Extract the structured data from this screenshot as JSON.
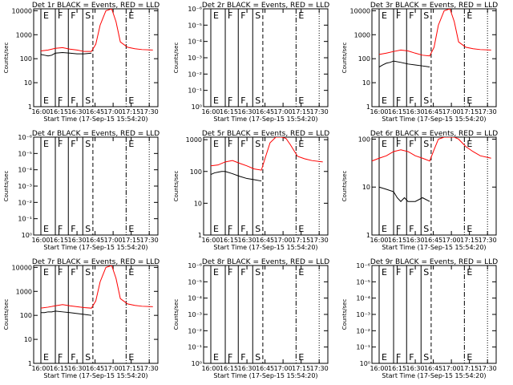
{
  "time_axis": {
    "tick_labels": [
      "16:00",
      "16:15",
      "16:30",
      "16:45",
      "17:00",
      "17:15",
      "17:30"
    ],
    "tick_hours": [
      16.0,
      16.25,
      16.5,
      16.75,
      17.0,
      17.25,
      17.5
    ],
    "xlim": [
      15.9,
      17.62
    ],
    "xlabel": "Start Time (17-Sep-15 15:54:20)"
  },
  "ylabel": "Counts/sec",
  "colors": {
    "events": "#000000",
    "lld": "#ff0000",
    "axes": "#000000"
  },
  "chart_data": [
    {
      "type": "line",
      "title": "Det 1r BLACK = Events, RED = LLD",
      "scale": "log",
      "ytick_labels": [
        "1",
        "10",
        "100",
        "1000",
        "10000"
      ],
      "ylim": [
        1,
        12000
      ],
      "markers": [
        {
          "label": "E",
          "t": 16.0,
          "style": "solid"
        },
        {
          "label": "F",
          "t": 16.2,
          "style": "solid"
        },
        {
          "label": "F",
          "t": 16.38,
          "style": "solid"
        },
        {
          "label": "S",
          "t": 16.58,
          "style": "solid"
        },
        {
          "label": "",
          "t": 16.72,
          "style": "dashed"
        },
        {
          "label": "E",
          "t": 17.18,
          "style": "dashdot"
        },
        {
          "label": "",
          "t": 17.5,
          "style": "dotted"
        }
      ],
      "series": [
        {
          "x": [
            16.0,
            16.1,
            16.2,
            16.3,
            16.4,
            16.5,
            16.6,
            16.7,
            16.76,
            16.82,
            16.9,
            16.98,
            17.04,
            17.1,
            17.2,
            17.3,
            17.4,
            17.55
          ],
          "y": [
            210,
            230,
            270,
            290,
            250,
            230,
            200,
            200,
            400,
            2500,
            10000,
            12000,
            3500,
            500,
            300,
            260,
            240,
            230
          ]
        },
        {
          "x": [
            16.0,
            16.05,
            16.1,
            16.15,
            16.2,
            16.3,
            16.4,
            16.5,
            16.6,
            16.7
          ],
          "y": [
            150,
            140,
            130,
            140,
            170,
            180,
            170,
            160,
            160,
            170
          ]
        }
      ]
    },
    {
      "type": "line",
      "title": "Det 2r BLACK = Events, RED = LLD",
      "scale": "log",
      "ytick_labels": [
        "10⁰",
        "10⁻¹",
        "10⁻²",
        "10⁻³",
        "10⁻⁴",
        "10⁻⁵",
        "10⁻⁶"
      ],
      "ylim": [
        0,
        6
      ],
      "markers": [
        {
          "label": "E",
          "t": 16.0,
          "style": "solid"
        },
        {
          "label": "F",
          "t": 16.2,
          "style": "solid"
        },
        {
          "label": "F",
          "t": 16.38,
          "style": "solid"
        },
        {
          "label": "S",
          "t": 16.58,
          "style": "solid"
        },
        {
          "label": "",
          "t": 16.72,
          "style": "dashed"
        },
        {
          "label": "E",
          "t": 17.18,
          "style": "dashdot"
        },
        {
          "label": "",
          "t": 17.5,
          "style": "dotted"
        }
      ],
      "series": []
    },
    {
      "type": "line",
      "title": "Det 3r BLACK = Events, RED = LLD",
      "scale": "log",
      "ytick_labels": [
        "1",
        "10",
        "100",
        "1000",
        "10000"
      ],
      "ylim": [
        1,
        12000
      ],
      "markers": [
        {
          "label": "E",
          "t": 16.0,
          "style": "solid"
        },
        {
          "label": "F",
          "t": 16.2,
          "style": "solid"
        },
        {
          "label": "F",
          "t": 16.38,
          "style": "solid"
        },
        {
          "label": "S",
          "t": 16.58,
          "style": "solid"
        },
        {
          "label": "",
          "t": 16.72,
          "style": "dashed"
        },
        {
          "label": "E",
          "t": 17.18,
          "style": "dashdot"
        },
        {
          "label": "",
          "t": 17.5,
          "style": "dotted"
        }
      ],
      "series": [
        {
          "x": [
            16.0,
            16.1,
            16.2,
            16.3,
            16.4,
            16.5,
            16.6,
            16.7,
            16.76,
            16.82,
            16.9,
            16.98,
            17.04,
            17.1,
            17.2,
            17.3,
            17.4,
            17.55
          ],
          "y": [
            150,
            170,
            200,
            230,
            210,
            170,
            140,
            130,
            300,
            2500,
            10000,
            12000,
            3500,
            500,
            300,
            260,
            240,
            230
          ]
        },
        {
          "x": [
            16.0,
            16.05,
            16.1,
            16.15,
            16.2,
            16.3,
            16.4,
            16.5,
            16.6,
            16.7
          ],
          "y": [
            45,
            55,
            65,
            70,
            80,
            70,
            60,
            55,
            50,
            45
          ]
        }
      ]
    },
    {
      "type": "line",
      "title": "Det 4r BLACK = Events, RED = LLD",
      "scale": "log",
      "ytick_labels": [
        "10⁰",
        "10⁻¹",
        "10⁻²",
        "10⁻³",
        "10⁻⁴",
        "10⁻⁵",
        "10⁻⁶"
      ],
      "ylim": [
        0,
        6
      ],
      "markers": [
        {
          "label": "E",
          "t": 16.0,
          "style": "solid"
        },
        {
          "label": "F",
          "t": 16.2,
          "style": "solid"
        },
        {
          "label": "F",
          "t": 16.38,
          "style": "solid"
        },
        {
          "label": "S",
          "t": 16.58,
          "style": "solid"
        },
        {
          "label": "",
          "t": 16.72,
          "style": "dashed"
        },
        {
          "label": "E",
          "t": 17.18,
          "style": "dashdot"
        },
        {
          "label": "",
          "t": 17.5,
          "style": "dotted"
        }
      ],
      "series": []
    },
    {
      "type": "line",
      "title": "Det 5r BLACK = Events, RED = LLD",
      "scale": "log",
      "ytick_labels": [
        "1",
        "10",
        "100",
        "1000"
      ],
      "ylim": [
        1,
        1200
      ],
      "markers": [
        {
          "label": "E",
          "t": 16.0,
          "style": "solid"
        },
        {
          "label": "F",
          "t": 16.2,
          "style": "solid"
        },
        {
          "label": "F",
          "t": 16.38,
          "style": "solid"
        },
        {
          "label": "S",
          "t": 16.58,
          "style": "solid"
        },
        {
          "label": "",
          "t": 16.72,
          "style": "dashed"
        },
        {
          "label": "E",
          "t": 17.18,
          "style": "dashdot"
        },
        {
          "label": "",
          "t": 17.5,
          "style": "dotted"
        }
      ],
      "series": [
        {
          "x": [
            16.0,
            16.1,
            16.2,
            16.3,
            16.4,
            16.5,
            16.6,
            16.7,
            16.76,
            16.82,
            16.9,
            16.98,
            17.04,
            17.1,
            17.2,
            17.3,
            17.4,
            17.55
          ],
          "y": [
            150,
            160,
            200,
            220,
            180,
            150,
            120,
            110,
            300,
            800,
            1200,
            1200,
            1100,
            700,
            300,
            250,
            220,
            200
          ]
        },
        {
          "x": [
            16.0,
            16.05,
            16.1,
            16.15,
            16.2,
            16.3,
            16.4,
            16.5,
            16.6,
            16.7
          ],
          "y": [
            80,
            90,
            95,
            100,
            100,
            85,
            70,
            60,
            55,
            50
          ]
        }
      ]
    },
    {
      "type": "line",
      "title": "Det 6r BLACK = Events, RED = LLD",
      "scale": "log",
      "ytick_labels": [
        "1",
        "10",
        "100"
      ],
      "ylim": [
        1,
        110
      ],
      "markers": [
        {
          "label": "E",
          "t": 16.0,
          "style": "solid"
        },
        {
          "label": "F",
          "t": 16.2,
          "style": "solid"
        },
        {
          "label": "F",
          "t": 16.38,
          "style": "solid"
        },
        {
          "label": "S",
          "t": 16.58,
          "style": "solid"
        },
        {
          "label": "",
          "t": 16.72,
          "style": "dashed"
        },
        {
          "label": "E",
          "t": 17.18,
          "style": "dashdot"
        },
        {
          "label": "",
          "t": 17.5,
          "style": "dotted"
        }
      ],
      "series": [
        {
          "x": [
            15.9,
            16.0,
            16.1,
            16.2,
            16.3,
            16.4,
            16.5,
            16.6,
            16.7,
            16.76,
            16.82,
            16.9,
            16.98,
            17.04,
            17.1,
            17.2,
            17.3,
            17.4,
            17.55
          ],
          "y": [
            35,
            40,
            45,
            55,
            60,
            55,
            45,
            40,
            35,
            60,
            100,
            110,
            110,
            110,
            100,
            70,
            55,
            45,
            40
          ]
        },
        {
          "x": [
            16.0,
            16.1,
            16.2,
            16.25,
            16.3,
            16.35,
            16.4,
            16.5,
            16.6,
            16.7
          ],
          "y": [
            10,
            9,
            8,
            6,
            5,
            6,
            5,
            5,
            6,
            5
          ]
        }
      ]
    },
    {
      "type": "line",
      "title": "Det 7r BLACK = Events, RED = LLD",
      "scale": "log",
      "ytick_labels": [
        "1",
        "10",
        "100",
        "1000",
        "10000"
      ],
      "ylim": [
        1,
        12000
      ],
      "markers": [
        {
          "label": "E",
          "t": 16.0,
          "style": "solid"
        },
        {
          "label": "F",
          "t": 16.2,
          "style": "solid"
        },
        {
          "label": "F",
          "t": 16.38,
          "style": "solid"
        },
        {
          "label": "S",
          "t": 16.58,
          "style": "solid"
        },
        {
          "label": "",
          "t": 16.72,
          "style": "dashed"
        },
        {
          "label": "E",
          "t": 17.18,
          "style": "dashdot"
        },
        {
          "label": "",
          "t": 17.5,
          "style": "dotted"
        }
      ],
      "series": [
        {
          "x": [
            16.0,
            16.1,
            16.2,
            16.3,
            16.4,
            16.5,
            16.6,
            16.7,
            16.76,
            16.82,
            16.9,
            16.98,
            17.04,
            17.1,
            17.2,
            17.3,
            17.4,
            17.55
          ],
          "y": [
            200,
            220,
            250,
            280,
            250,
            230,
            210,
            200,
            400,
            2500,
            10000,
            12000,
            3500,
            500,
            300,
            260,
            240,
            230
          ]
        },
        {
          "x": [
            16.0,
            16.05,
            16.1,
            16.15,
            16.2,
            16.3,
            16.4,
            16.5,
            16.6,
            16.7
          ],
          "y": [
            130,
            130,
            140,
            140,
            150,
            140,
            130,
            120,
            110,
            100
          ]
        }
      ]
    },
    {
      "type": "line",
      "title": "Det 8r BLACK = Events, RED = LLD",
      "scale": "log",
      "ytick_labels": [
        "10⁰",
        "10⁻¹",
        "10⁻²",
        "10⁻³",
        "10⁻⁴",
        "10⁻⁵",
        "10⁻⁶"
      ],
      "ylim": [
        0,
        6
      ],
      "markers": [
        {
          "label": "E",
          "t": 16.0,
          "style": "solid"
        },
        {
          "label": "F",
          "t": 16.2,
          "style": "solid"
        },
        {
          "label": "F",
          "t": 16.38,
          "style": "solid"
        },
        {
          "label": "S",
          "t": 16.58,
          "style": "solid"
        },
        {
          "label": "",
          "t": 16.72,
          "style": "dashed"
        },
        {
          "label": "E",
          "t": 17.18,
          "style": "dashdot"
        },
        {
          "label": "",
          "t": 17.5,
          "style": "dotted"
        }
      ],
      "series": []
    },
    {
      "type": "line",
      "title": "Det 9r BLACK = Events, RED = LLD",
      "scale": "log",
      "ytick_labels": [
        "10⁰",
        "10⁻¹",
        "10⁻²",
        "10⁻³",
        "10⁻⁴",
        "10⁻⁵",
        "10⁻⁶"
      ],
      "ylim": [
        0,
        6
      ],
      "markers": [
        {
          "label": "E",
          "t": 16.0,
          "style": "solid"
        },
        {
          "label": "F",
          "t": 16.2,
          "style": "solid"
        },
        {
          "label": "F",
          "t": 16.38,
          "style": "solid"
        },
        {
          "label": "S",
          "t": 16.58,
          "style": "solid"
        },
        {
          "label": "",
          "t": 16.72,
          "style": "dashed"
        },
        {
          "label": "E",
          "t": 17.18,
          "style": "dashdot"
        },
        {
          "label": "",
          "t": 17.5,
          "style": "dotted"
        }
      ],
      "series": []
    }
  ]
}
